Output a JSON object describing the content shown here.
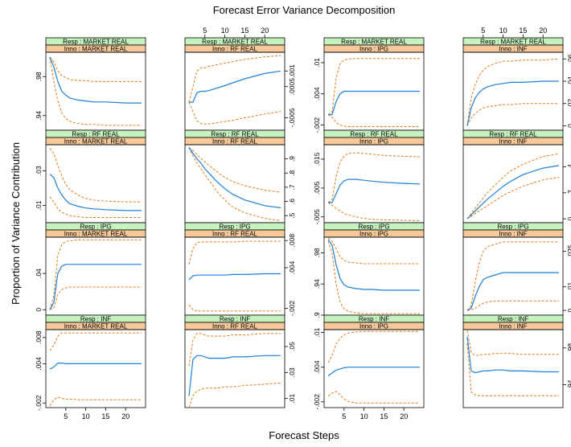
{
  "title": "Forecast Error Variance Decomposition",
  "xlabel": "Forecast Steps",
  "ylabel": "Proportion of Variance Contribution",
  "strip_prefix_resp": "Resp : ",
  "strip_prefix_inno": "Inno : ",
  "colors": {
    "resp_strip": "#c6f2c0",
    "inno_strip": "#f7c99a",
    "estimate": "#1f7fd6",
    "bands": "#e07b1a"
  },
  "chart_data": {
    "type": "line",
    "layout": "4x4 lattice",
    "x_ticks": [
      5,
      10,
      15,
      20
    ],
    "xlim": [
      0,
      25
    ],
    "panels": [
      {
        "resp": "MARKET REAL",
        "inno": "MARKET REAL",
        "ylim": [
          0.925,
          1.005
        ],
        "yticks": [
          0.94,
          0.98
        ],
        "x": [
          1,
          2,
          3,
          4,
          5,
          6,
          8,
          10,
          12,
          15,
          20,
          24
        ],
        "estimate": [
          1.0,
          0.99,
          0.975,
          0.965,
          0.961,
          0.958,
          0.956,
          0.955,
          0.954,
          0.954,
          0.953,
          0.953
        ],
        "upper": [
          1.0,
          0.995,
          0.986,
          0.981,
          0.979,
          0.977,
          0.976,
          0.976,
          0.975,
          0.975,
          0.975,
          0.975
        ],
        "lower": [
          1.0,
          0.975,
          0.955,
          0.943,
          0.937,
          0.934,
          0.932,
          0.931,
          0.931,
          0.93,
          0.93,
          0.93
        ]
      },
      {
        "resp": "MARKET REAL",
        "inno": "RF REAL",
        "ylim": [
          -0.0009,
          0.0016
        ],
        "yticks": [
          -0.0005,
          0.0005,
          0.001
        ],
        "x": [
          1,
          2,
          3,
          4,
          5,
          6,
          8,
          10,
          12,
          15,
          20,
          24
        ],
        "estimate": [
          0,
          0,
          0.0003,
          0.00035,
          0.00035,
          0.00037,
          0.00045,
          0.00053,
          0.00062,
          0.00075,
          0.00092,
          0.001
        ],
        "upper": [
          0,
          0.0005,
          0.001,
          0.0011,
          0.0011,
          0.00115,
          0.0012,
          0.00125,
          0.0013,
          0.00137,
          0.00145,
          0.0015
        ],
        "lower": [
          0,
          -0.0003,
          -0.0006,
          -0.00068,
          -0.0007,
          -0.0007,
          -0.00066,
          -0.00062,
          -0.00058,
          -0.0005,
          -0.00038,
          -0.0003
        ]
      },
      {
        "resp": "MARKET REAL",
        "inno": "IPG",
        "ylim": [
          -0.003,
          0.012
        ],
        "yticks": [
          -0.002,
          0.004,
          0.01
        ],
        "x": [
          1,
          2,
          3,
          4,
          5,
          6,
          8,
          10,
          12,
          15,
          20,
          24
        ],
        "estimate": [
          0,
          0,
          0.0025,
          0.004,
          0.0045,
          0.0045,
          0.0045,
          0.0045,
          0.0045,
          0.0045,
          0.0045,
          0.0045
        ],
        "upper": [
          0,
          0.0005,
          0.007,
          0.0098,
          0.0105,
          0.0107,
          0.0108,
          0.0108,
          0.0108,
          0.0108,
          0.0108,
          0.0108
        ],
        "lower": [
          0,
          -0.0005,
          -0.0015,
          -0.002,
          -0.0022,
          -0.0023,
          -0.0023,
          -0.0023,
          -0.0023,
          -0.0023,
          -0.0023,
          -0.0023
        ]
      },
      {
        "resp": "MARKET REAL",
        "inno": "INF",
        "ylim": [
          -0.004,
          0.066
        ],
        "yticks": [
          0,
          0.02,
          0.04,
          0.06
        ],
        "x": [
          1,
          2,
          3,
          4,
          5,
          6,
          8,
          10,
          12,
          15,
          20,
          24
        ],
        "estimate": [
          0,
          0.016,
          0.025,
          0.03,
          0.033,
          0.035,
          0.037,
          0.038,
          0.039,
          0.039,
          0.04,
          0.04
        ],
        "upper": [
          0,
          0.025,
          0.037,
          0.045,
          0.05,
          0.053,
          0.056,
          0.058,
          0.058,
          0.059,
          0.059,
          0.06
        ],
        "lower": [
          0,
          0.007,
          0.011,
          0.014,
          0.016,
          0.017,
          0.018,
          0.019,
          0.019,
          0.02,
          0.02,
          0.02
        ]
      },
      {
        "resp": "RF REAL",
        "inno": "MARKET REAL",
        "ylim": [
          0.0,
          0.045
        ],
        "yticks": [
          0.01,
          0.03
        ],
        "x": [
          1,
          2,
          3,
          4,
          5,
          6,
          8,
          10,
          12,
          15,
          20,
          24
        ],
        "estimate": [
          0.028,
          0.026,
          0.02,
          0.016,
          0.013,
          0.011,
          0.0095,
          0.0085,
          0.008,
          0.0075,
          0.007,
          0.007
        ],
        "upper": [
          0.043,
          0.04,
          0.033,
          0.027,
          0.022,
          0.019,
          0.016,
          0.014,
          0.013,
          0.0125,
          0.012,
          0.012
        ],
        "lower": [
          0.015,
          0.012,
          0.008,
          0.006,
          0.005,
          0.004,
          0.0035,
          0.003,
          0.003,
          0.003,
          0.003,
          0.003
        ]
      },
      {
        "resp": "RF REAL",
        "inno": "RF REAL",
        "ylim": [
          0.45,
          1.0
        ],
        "yticks": [
          0.5,
          0.6,
          0.7,
          0.8,
          0.9
        ],
        "x": [
          1,
          2,
          3,
          4,
          5,
          6,
          8,
          10,
          12,
          15,
          20,
          24
        ],
        "estimate": [
          0.98,
          0.94,
          0.9,
          0.87,
          0.83,
          0.8,
          0.74,
          0.69,
          0.65,
          0.61,
          0.57,
          0.555
        ],
        "upper": [
          0.98,
          0.96,
          0.93,
          0.905,
          0.88,
          0.855,
          0.81,
          0.77,
          0.74,
          0.71,
          0.68,
          0.665
        ],
        "lower": [
          0.98,
          0.92,
          0.87,
          0.83,
          0.79,
          0.75,
          0.67,
          0.61,
          0.56,
          0.52,
          0.48,
          0.465
        ]
      },
      {
        "resp": "RF REAL",
        "inno": "IPG",
        "ylim": [
          -0.007,
          0.02
        ],
        "yticks": [
          -0.005,
          0.005,
          0.015
        ],
        "x": [
          1,
          2,
          3,
          4,
          5,
          6,
          8,
          10,
          12,
          15,
          20,
          24
        ],
        "estimate": [
          0,
          0,
          0.003,
          0.006,
          0.0075,
          0.008,
          0.008,
          0.0077,
          0.0074,
          0.007,
          0.0066,
          0.0064
        ],
        "upper": [
          0,
          0.001,
          0.009,
          0.014,
          0.016,
          0.017,
          0.0172,
          0.017,
          0.0167,
          0.0163,
          0.016,
          0.0158
        ],
        "lower": [
          0,
          -0.001,
          -0.002,
          -0.003,
          -0.0038,
          -0.0043,
          -0.005,
          -0.0055,
          -0.0058,
          -0.006,
          -0.0062,
          -0.0063
        ]
      },
      {
        "resp": "RF REAL",
        "inno": "INF",
        "ylim": [
          -0.03,
          0.57
        ],
        "yticks": [
          0,
          0.2,
          0.4
        ],
        "x": [
          1,
          2,
          3,
          4,
          5,
          6,
          8,
          10,
          12,
          15,
          20,
          24
        ],
        "estimate": [
          0,
          0.03,
          0.06,
          0.09,
          0.12,
          0.15,
          0.2,
          0.25,
          0.29,
          0.34,
          0.39,
          0.41
        ],
        "upper": [
          0,
          0.04,
          0.08,
          0.12,
          0.16,
          0.2,
          0.26,
          0.32,
          0.37,
          0.42,
          0.48,
          0.5
        ],
        "lower": [
          0,
          0.02,
          0.04,
          0.06,
          0.08,
          0.1,
          0.14,
          0.18,
          0.21,
          0.25,
          0.3,
          0.32
        ]
      },
      {
        "resp": "IPG",
        "inno": "MARKET REAL",
        "ylim": [
          -0.006,
          0.08
        ],
        "yticks": [
          0,
          0.04
        ],
        "x": [
          1,
          2,
          3,
          4,
          5,
          6,
          8,
          10,
          12,
          15,
          20,
          24
        ],
        "estimate": [
          0,
          0.008,
          0.04,
          0.048,
          0.05,
          0.05,
          0.05,
          0.05,
          0.05,
          0.05,
          0.05,
          0.05
        ],
        "upper": [
          0,
          0.015,
          0.06,
          0.072,
          0.075,
          0.076,
          0.077,
          0.077,
          0.077,
          0.077,
          0.077,
          0.077
        ],
        "lower": [
          0,
          0.002,
          0.017,
          0.022,
          0.024,
          0.025,
          0.025,
          0.025,
          0.025,
          0.025,
          0.025,
          0.025
        ]
      },
      {
        "resp": "IPG",
        "inno": "RF REAL",
        "ylim": [
          -0.003,
          0.0085
        ],
        "yticks": [
          -0.002,
          0.004,
          0.008
        ],
        "x": [
          1,
          2,
          3,
          4,
          5,
          6,
          8,
          10,
          12,
          15,
          20,
          24
        ],
        "estimate": [
          0.0022,
          0.0028,
          0.0029,
          0.0029,
          0.0029,
          0.0029,
          0.0029,
          0.0029,
          0.003,
          0.003,
          0.0031,
          0.0031
        ],
        "upper": [
          0.0045,
          0.0068,
          0.0077,
          0.0078,
          0.0078,
          0.0078,
          0.0078,
          0.0078,
          0.0078,
          0.0079,
          0.0079,
          0.0079
        ],
        "lower": [
          -0.0015,
          -0.0022,
          -0.0024,
          -0.0024,
          -0.0024,
          -0.0024,
          -0.0024,
          -0.0024,
          -0.0024,
          -0.0024,
          -0.0024,
          -0.0024
        ]
      },
      {
        "resp": "IPG",
        "inno": "IPG",
        "ylim": [
          0.9,
          1.0
        ],
        "yticks": [
          0.9,
          0.94,
          0.98
        ],
        "x": [
          1,
          2,
          3,
          4,
          5,
          6,
          8,
          10,
          12,
          15,
          20,
          24
        ],
        "estimate": [
          0.997,
          0.99,
          0.965,
          0.947,
          0.939,
          0.936,
          0.934,
          0.933,
          0.933,
          0.932,
          0.932,
          0.932
        ],
        "upper": [
          0.999,
          0.995,
          0.985,
          0.975,
          0.97,
          0.968,
          0.967,
          0.966,
          0.966,
          0.966,
          0.966,
          0.966
        ],
        "lower": [
          0.995,
          0.98,
          0.94,
          0.917,
          0.908,
          0.905,
          0.903,
          0.902,
          0.902,
          0.902,
          0.902,
          0.902
        ]
      },
      {
        "resp": "IPG",
        "inno": "INF",
        "ylim": [
          -0.002,
          0.031
        ],
        "yticks": [
          0,
          0.01,
          0.025
        ],
        "x": [
          1,
          2,
          3,
          4,
          5,
          6,
          8,
          10,
          12,
          15,
          20,
          24
        ],
        "estimate": [
          0,
          0.001,
          0.006,
          0.01,
          0.013,
          0.014,
          0.015,
          0.016,
          0.016,
          0.016,
          0.016,
          0.016
        ],
        "upper": [
          0,
          0.002,
          0.012,
          0.02,
          0.025,
          0.027,
          0.028,
          0.029,
          0.029,
          0.029,
          0.029,
          0.029
        ],
        "lower": [
          0,
          0.0002,
          0.001,
          0.002,
          0.003,
          0.0035,
          0.004,
          0.004,
          0.004,
          0.004,
          0.004,
          0.004
        ]
      },
      {
        "resp": "INF",
        "inno": "MARKET REAL",
        "ylim": [
          -0.0027,
          0.0092
        ],
        "yticks": [
          -0.002,
          0.004,
          0.008
        ],
        "x": [
          1,
          2,
          3,
          4,
          5,
          6,
          8,
          10,
          12,
          15,
          20,
          24
        ],
        "estimate": [
          0.0032,
          0.0035,
          0.0041,
          0.0041,
          0.004,
          0.004,
          0.004,
          0.004,
          0.004,
          0.004,
          0.004,
          0.004
        ],
        "upper": [
          0.006,
          0.0068,
          0.0082,
          0.0087,
          0.0087,
          0.0087,
          0.0087,
          0.0087,
          0.0087,
          0.0087,
          0.0087,
          0.0087
        ],
        "lower": [
          -0.0024,
          -0.0015,
          -0.0011,
          -0.0013,
          -0.0014,
          -0.0014,
          -0.0015,
          -0.0015,
          -0.0015,
          -0.0015,
          -0.0015,
          -0.0015
        ]
      },
      {
        "resp": "INF",
        "inno": "RF REAL",
        "ylim": [
          0.003,
          0.063
        ],
        "yticks": [
          0.01,
          0.03,
          0.05
        ],
        "x": [
          1,
          2,
          3,
          4,
          5,
          6,
          8,
          10,
          12,
          15,
          20,
          24
        ],
        "estimate": [
          0.012,
          0.04,
          0.043,
          0.043,
          0.042,
          0.041,
          0.041,
          0.041,
          0.042,
          0.042,
          0.043,
          0.043
        ],
        "upper": [
          0.035,
          0.055,
          0.06,
          0.06,
          0.059,
          0.058,
          0.058,
          0.058,
          0.059,
          0.059,
          0.06,
          0.06
        ],
        "lower": [
          0.003,
          0.012,
          0.016,
          0.017,
          0.018,
          0.018,
          0.018,
          0.019,
          0.019,
          0.02,
          0.021,
          0.022
        ]
      },
      {
        "resp": "INF",
        "inno": "IPG",
        "ylim": [
          -0.003,
          0.0105
        ],
        "yticks": [
          -0.002,
          0.004,
          0.01
        ],
        "x": [
          1,
          2,
          3,
          4,
          5,
          6,
          8,
          10,
          12,
          15,
          20,
          24
        ],
        "estimate": [
          0.0025,
          0.003,
          0.0035,
          0.0037,
          0.0039,
          0.004,
          0.004,
          0.004,
          0.004,
          0.004,
          0.004,
          0.004
        ],
        "upper": [
          0.0048,
          0.006,
          0.008,
          0.009,
          0.0096,
          0.0099,
          0.0101,
          0.0102,
          0.0102,
          0.0102,
          0.0102,
          0.0102
        ],
        "lower": [
          -0.001,
          -0.0005,
          -0.0002,
          -0.0008,
          -0.0015,
          -0.0019,
          -0.0022,
          -0.0022,
          -0.0022,
          -0.0022,
          -0.0022,
          -0.0022
        ]
      },
      {
        "resp": "INF",
        "inno": "INF",
        "ylim": [
          0.915,
          1.0
        ],
        "yticks": [
          0.94,
          0.98
        ],
        "x": [
          1,
          2,
          3,
          4,
          5,
          6,
          8,
          10,
          12,
          15,
          20,
          24
        ],
        "estimate": [
          0.992,
          0.955,
          0.953,
          0.954,
          0.955,
          0.955,
          0.956,
          0.956,
          0.955,
          0.955,
          0.954,
          0.954
        ],
        "upper": [
          0.999,
          0.975,
          0.972,
          0.972,
          0.973,
          0.973,
          0.974,
          0.974,
          0.974,
          0.973,
          0.973,
          0.973
        ],
        "lower": [
          0.985,
          0.932,
          0.929,
          0.928,
          0.928,
          0.928,
          0.928,
          0.928,
          0.928,
          0.928,
          0.928,
          0.928
        ]
      }
    ]
  }
}
